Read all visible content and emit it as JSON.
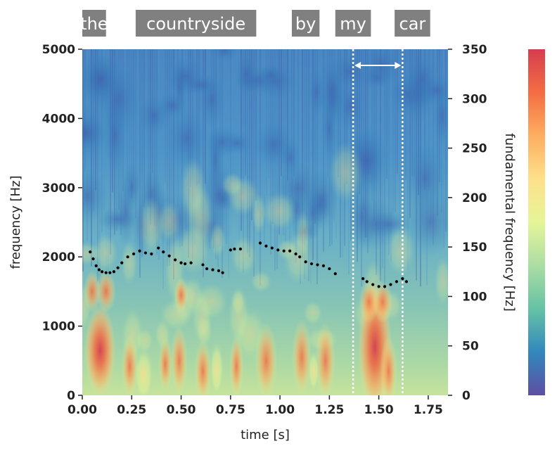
{
  "chart_data": {
    "type": "heatmap",
    "subtype": "spectrogram with fundamental-frequency contour",
    "xlabel": "time [s]",
    "ylabel_left": "frequency [Hz]",
    "ylabel_right": "fundamental frequency [Hz]",
    "xlim": [
      0,
      1.85
    ],
    "ylim_left": [
      0,
      5000
    ],
    "ylim_right": [
      0,
      350
    ],
    "x_ticks": [
      0.0,
      0.25,
      0.5,
      0.75,
      1.0,
      1.25,
      1.5,
      1.75
    ],
    "x_tick_labels": [
      "0.00",
      "0.25",
      "0.50",
      "0.75",
      "1.00",
      "1.25",
      "1.50",
      "1.75"
    ],
    "y_left_ticks": [
      0,
      1000,
      2000,
      3000,
      4000,
      5000
    ],
    "y_left_tick_labels": [
      "0",
      "1000",
      "2000",
      "3000",
      "4000",
      "5000"
    ],
    "y_right_ticks": [
      0,
      50,
      100,
      150,
      200,
      250,
      300,
      350
    ],
    "y_right_tick_labels": [
      "0",
      "50",
      "100",
      "150",
      "200",
      "250",
      "300",
      "350"
    ],
    "colormap": "spectral (blue low, red high)",
    "colorbar_colors": [
      "#5e4fa2",
      "#3288bd",
      "#66c2a5",
      "#abdda4",
      "#e6f598",
      "#fee08b",
      "#fdae61",
      "#f46d43",
      "#d53e4f"
    ],
    "words": [
      {
        "text": "the",
        "start": 0.0,
        "end": 0.12
      },
      {
        "text": "countryside",
        "start": 0.27,
        "end": 0.88
      },
      {
        "text": "by",
        "start": 1.06,
        "end": 1.2
      },
      {
        "text": "my",
        "start": 1.28,
        "end": 1.46
      },
      {
        "text": "car",
        "start": 1.58,
        "end": 1.76
      }
    ],
    "highlight_interval": [
      1.37,
      1.62
    ],
    "highlight_color": "#ffffff",
    "f0_color": "#000000",
    "f0_points": [
      [
        0.04,
        145
      ],
      [
        0.055,
        138
      ],
      [
        0.07,
        131
      ],
      [
        0.085,
        127
      ],
      [
        0.1,
        125
      ],
      [
        0.12,
        124
      ],
      [
        0.14,
        124
      ],
      [
        0.16,
        125
      ],
      [
        0.18,
        129
      ],
      [
        0.2,
        134
      ],
      [
        0.23,
        140
      ],
      [
        0.26,
        143
      ],
      [
        0.29,
        146
      ],
      [
        0.32,
        144
      ],
      [
        0.35,
        143
      ],
      [
        0.385,
        149
      ],
      [
        0.41,
        145
      ],
      [
        0.44,
        141
      ],
      [
        0.47,
        137
      ],
      [
        0.5,
        134
      ],
      [
        0.52,
        133
      ],
      [
        0.55,
        134
      ],
      [
        0.61,
        132
      ],
      [
        0.63,
        128
      ],
      [
        0.66,
        127
      ],
      [
        0.69,
        126
      ],
      [
        0.71,
        124
      ],
      [
        0.75,
        147
      ],
      [
        0.77,
        148
      ],
      [
        0.8,
        148
      ],
      [
        0.9,
        154
      ],
      [
        0.93,
        151
      ],
      [
        0.96,
        149
      ],
      [
        0.99,
        147
      ],
      [
        1.02,
        146
      ],
      [
        1.05,
        146
      ],
      [
        1.08,
        143
      ],
      [
        1.1,
        140
      ],
      [
        1.13,
        135
      ],
      [
        1.16,
        133
      ],
      [
        1.19,
        132
      ],
      [
        1.22,
        131
      ],
      [
        1.25,
        128
      ],
      [
        1.28,
        123
      ],
      [
        1.42,
        118
      ],
      [
        1.44,
        115
      ],
      [
        1.47,
        112
      ],
      [
        1.5,
        110
      ],
      [
        1.53,
        110
      ],
      [
        1.56,
        112
      ],
      [
        1.59,
        115
      ],
      [
        1.62,
        118
      ],
      [
        1.64,
        115
      ]
    ]
  }
}
